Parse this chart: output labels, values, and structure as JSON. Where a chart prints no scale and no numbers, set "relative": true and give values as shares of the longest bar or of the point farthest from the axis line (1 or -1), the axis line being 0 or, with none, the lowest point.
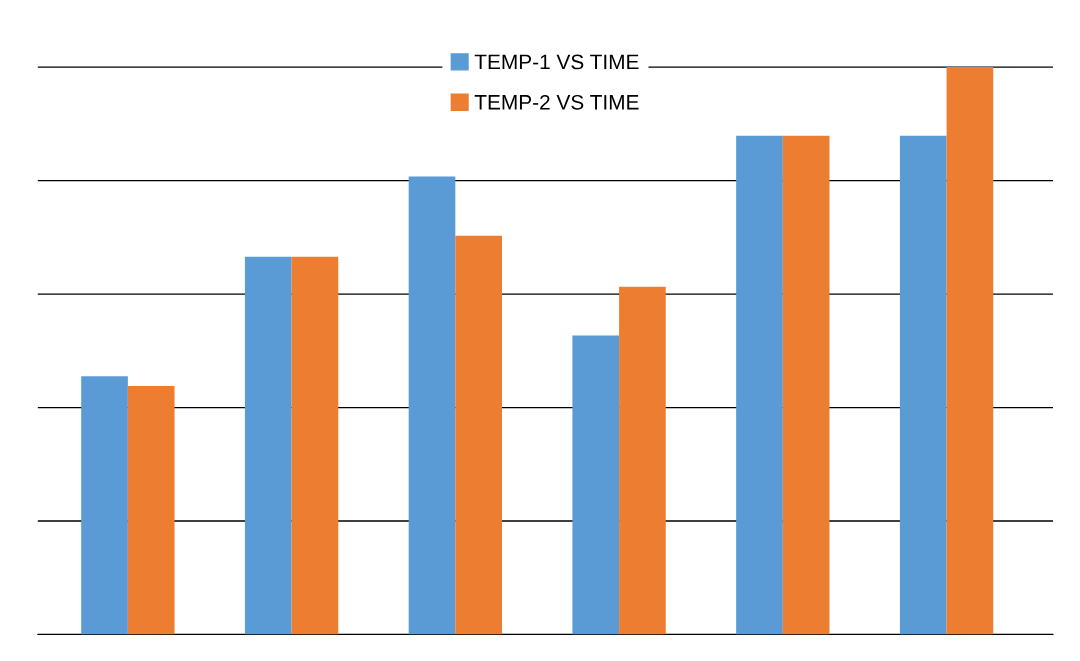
{
  "chart_data": {
    "type": "bar",
    "relative": true,
    "categories": [
      null,
      null,
      null,
      null,
      null,
      null
    ],
    "series": [
      {
        "name": "TEMP-1 VS TIME",
        "color": "#5b9bd5",
        "values": [
          0.455,
          0.666,
          0.807,
          0.527,
          0.879,
          0.879
        ]
      },
      {
        "name": "TEMP-2 VS TIME",
        "color": "#ed7d31",
        "values": [
          0.438,
          0.666,
          0.703,
          0.613,
          0.879,
          1
        ]
      }
    ],
    "grid": "y",
    "legend": "top"
  }
}
